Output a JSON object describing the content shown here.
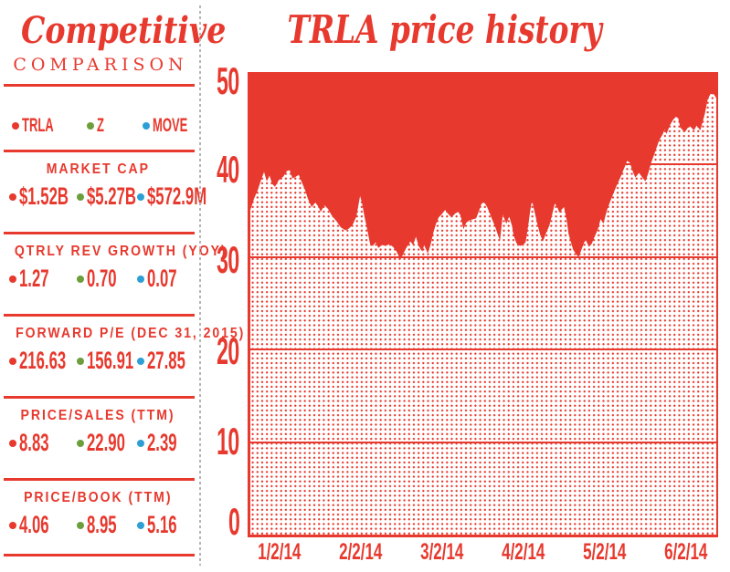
{
  "colors": {
    "red": "#e7392e",
    "green": "#6d9e3c",
    "blue": "#2e9fd4",
    "divider_gray": "#b5b5b5"
  },
  "sidebar": {
    "title": "Competitive",
    "subtitle": "COMPARISON",
    "legend": [
      {
        "ticker": "TRLA",
        "color": "#e7392e"
      },
      {
        "ticker": "Z",
        "color": "#6d9e3c"
      },
      {
        "ticker": "MOVE",
        "color": "#2e9fd4"
      }
    ],
    "sections": [
      {
        "label": "MARKET CAP",
        "values": [
          "$1.52B",
          "$5.27B",
          "$572.9M"
        ]
      },
      {
        "label": "QTRLY REV GROWTH (YOY)",
        "values": [
          "1.27",
          "0.70",
          "0.07"
        ]
      },
      {
        "label": "FORWARD P/E (DEC 31, 2015)",
        "values": [
          "216.63",
          "156.91",
          "27.85"
        ]
      },
      {
        "label": "PRICE/SALES (TTM)",
        "values": [
          "8.83",
          "22.90",
          "2.39"
        ]
      },
      {
        "label": "PRICE/BOOK (TTM)",
        "values": [
          "4.06",
          "8.95",
          "5.16"
        ]
      }
    ]
  },
  "chart": {
    "title": "TRLA price history"
  },
  "chart_data": {
    "type": "area",
    "title": "TRLA price history",
    "series": [
      {
        "name": "TRLA",
        "x_unit": "fraction of date axis (0 = 1/2/14, 1 = right edge)",
        "y_unit": "price (USD)",
        "points": [
          [
            0,
            35.1
          ],
          [
            0.0079,
            36.3
          ],
          [
            0.0157,
            37.2
          ],
          [
            0.0236,
            38.4
          ],
          [
            0.0294,
            39.2
          ],
          [
            0.0353,
            38.2
          ],
          [
            0.0412,
            38.8
          ],
          [
            0.0471,
            37.9
          ],
          [
            0.053,
            37.6
          ],
          [
            0.0608,
            38.3
          ],
          [
            0.0707,
            38.7
          ],
          [
            0.0785,
            39.3
          ],
          [
            0.0844,
            39.4
          ],
          [
            0.0903,
            38.5
          ],
          [
            0.0981,
            38.7
          ],
          [
            0.104,
            38.9
          ],
          [
            0.1119,
            37.9
          ],
          [
            0.1178,
            37.2
          ],
          [
            0.1236,
            36.3
          ],
          [
            0.1315,
            35.4
          ],
          [
            0.1394,
            35.9
          ],
          [
            0.1452,
            35.5
          ],
          [
            0.1511,
            34.9
          ],
          [
            0.159,
            35.6
          ],
          [
            0.1668,
            35.2
          ],
          [
            0.1747,
            34.5
          ],
          [
            0.1845,
            33.9
          ],
          [
            0.1943,
            33.2
          ],
          [
            0.2041,
            32.9
          ],
          [
            0.212,
            33.1
          ],
          [
            0.2198,
            33.5
          ],
          [
            0.2277,
            34.4
          ],
          [
            0.2355,
            36.6
          ],
          [
            0.2394,
            35.9
          ],
          [
            0.2453,
            34.3
          ],
          [
            0.2512,
            32.9
          ],
          [
            0.2571,
            31.4
          ],
          [
            0.263,
            31.2
          ],
          [
            0.2689,
            31.6
          ],
          [
            0.2748,
            31.0
          ],
          [
            0.2826,
            31.3
          ],
          [
            0.2905,
            31.2
          ],
          [
            0.2983,
            31.4
          ],
          [
            0.3062,
            31.1
          ],
          [
            0.314,
            30.6
          ],
          [
            0.3219,
            29.7
          ],
          [
            0.3278,
            30.3
          ],
          [
            0.3336,
            30.9
          ],
          [
            0.3435,
            31.7
          ],
          [
            0.3494,
            31.3
          ],
          [
            0.3552,
            32.2
          ],
          [
            0.3611,
            31.2
          ],
          [
            0.369,
            30.6
          ],
          [
            0.3729,
            31.3
          ],
          [
            0.3808,
            30.4
          ],
          [
            0.3866,
            31.3
          ],
          [
            0.3925,
            32.6
          ],
          [
            0.3984,
            33.6
          ],
          [
            0.4043,
            34.3
          ],
          [
            0.4102,
            34.6
          ],
          [
            0.418,
            35.1
          ],
          [
            0.4259,
            34.6
          ],
          [
            0.4318,
            34.3
          ],
          [
            0.4396,
            34.7
          ],
          [
            0.4455,
            34.9
          ],
          [
            0.4514,
            34.5
          ],
          [
            0.4573,
            33.0
          ],
          [
            0.4632,
            33.7
          ],
          [
            0.471,
            34.0
          ],
          [
            0.4789,
            34.1
          ],
          [
            0.4848,
            34.2
          ],
          [
            0.4907,
            35.0
          ],
          [
            0.4965,
            35.8
          ],
          [
            0.5024,
            35.9
          ],
          [
            0.5083,
            35.4
          ],
          [
            0.5142,
            34.7
          ],
          [
            0.5201,
            33.9
          ],
          [
            0.526,
            33.2
          ],
          [
            0.5319,
            32.3
          ],
          [
            0.5358,
            31.8
          ],
          [
            0.5417,
            34.6
          ],
          [
            0.5495,
            33.6
          ],
          [
            0.5554,
            34.4
          ],
          [
            0.5613,
            33.4
          ],
          [
            0.5652,
            32.3
          ],
          [
            0.5711,
            31.5
          ],
          [
            0.5789,
            31.2
          ],
          [
            0.5868,
            31.4
          ],
          [
            0.5907,
            31.6
          ],
          [
            0.5966,
            33.5
          ],
          [
            0.6006,
            35.0
          ],
          [
            0.6045,
            36.1
          ],
          [
            0.6104,
            34.8
          ],
          [
            0.6163,
            33.5
          ],
          [
            0.6222,
            32.4
          ],
          [
            0.628,
            31.7
          ],
          [
            0.6339,
            32.5
          ],
          [
            0.6418,
            33.4
          ],
          [
            0.6477,
            34.6
          ],
          [
            0.6535,
            35.8
          ],
          [
            0.6594,
            35.3
          ],
          [
            0.6633,
            34.8
          ],
          [
            0.6692,
            35.2
          ],
          [
            0.6731,
            35.4
          ],
          [
            0.679,
            34.0
          ],
          [
            0.683,
            32.5
          ],
          [
            0.6928,
            30.8
          ],
          [
            0.7007,
            30.2
          ],
          [
            0.7046,
            30.0
          ],
          [
            0.7105,
            30.8
          ],
          [
            0.7164,
            31.6
          ],
          [
            0.7203,
            31.8
          ],
          [
            0.7262,
            31.1
          ],
          [
            0.7321,
            31.4
          ],
          [
            0.7399,
            32.3
          ],
          [
            0.7458,
            33.0
          ],
          [
            0.7517,
            34.1
          ],
          [
            0.7576,
            33.6
          ],
          [
            0.7655,
            35.1
          ],
          [
            0.7753,
            36.4
          ],
          [
            0.7851,
            37.6
          ],
          [
            0.7949,
            38.7
          ],
          [
            0.8047,
            39.9
          ],
          [
            0.8086,
            40.4
          ],
          [
            0.8145,
            40.2
          ],
          [
            0.8204,
            39.3
          ],
          [
            0.8263,
            38.6
          ],
          [
            0.8341,
            39.1
          ],
          [
            0.84,
            38.7
          ],
          [
            0.8479,
            38.2
          ],
          [
            0.8538,
            39.0
          ],
          [
            0.8597,
            40.1
          ],
          [
            0.8675,
            41.2
          ],
          [
            0.8773,
            42.6
          ],
          [
            0.8852,
            43.3
          ],
          [
            0.8891,
            43.8
          ],
          [
            0.893,
            43.3
          ],
          [
            0.9009,
            44.3
          ],
          [
            0.9068,
            44.8
          ],
          [
            0.9127,
            45.2
          ],
          [
            0.9185,
            45.0
          ],
          [
            0.9225,
            44.0
          ],
          [
            0.9323,
            43.5
          ],
          [
            0.9421,
            44.2
          ],
          [
            0.9519,
            43.7
          ],
          [
            0.9578,
            44.2
          ],
          [
            0.9656,
            43.7
          ],
          [
            0.9755,
            45.5
          ],
          [
            0.9813,
            47.0
          ],
          [
            0.9872,
            47.6
          ],
          [
            0.9931,
            47.7
          ],
          [
            1,
            47.2
          ]
        ]
      }
    ],
    "x_labels": [
      "1/2/14",
      "2/2/14",
      "3/2/14",
      "4/2/14",
      "5/2/14",
      "6/2/14"
    ],
    "y_ticks": [
      0,
      10,
      20,
      30,
      40,
      50
    ],
    "ylim": [
      0,
      50
    ],
    "grid": "horizontal lines at 10,20,30,40; area below line is red halftone dots, above line solid red"
  }
}
